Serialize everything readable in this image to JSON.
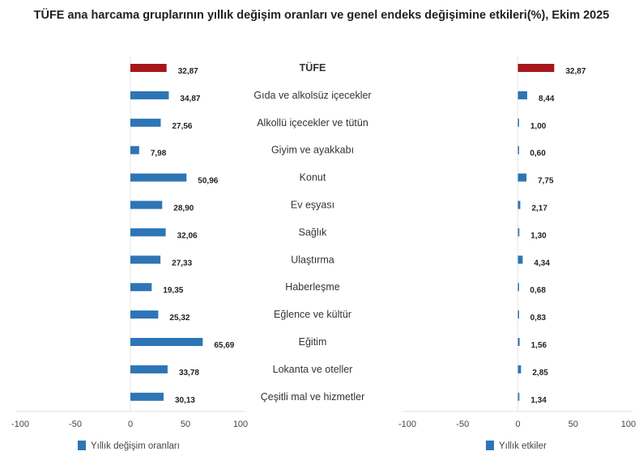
{
  "chart_data": [
    {
      "type": "bar",
      "orientation": "horizontal",
      "title": "TÜFE ana harcama gruplarının yıllık değişim oranları ve genel endeks değişimine etkileri(%), Ekim 2025",
      "categories": [
        "TÜFE",
        "Gıda ve alkolsüz içecekler",
        "Alkollü içecekler ve tütün",
        "Giyim ve ayakkabı",
        "Konut",
        "Ev eşyası",
        "Sağlık",
        "Ulaştırma",
        "Haberleşme",
        "Eğlence ve kültür",
        "Eğitim",
        "Lokanta ve oteller",
        "Çeşitli mal ve hizmetler"
      ],
      "series": [
        {
          "name": "Yıllık değişim oranları",
          "values": [
            32.87,
            34.87,
            27.56,
            7.98,
            50.96,
            28.9,
            32.06,
            27.33,
            19.35,
            25.32,
            65.69,
            33.78,
            30.13
          ],
          "labels": [
            "32,87",
            "34,87",
            "27,56",
            "7,98",
            "50,96",
            "28,90",
            "32,06",
            "27,33",
            "19,35",
            "25,32",
            "65,69",
            "33,78",
            "30,13"
          ]
        }
      ],
      "xlim": [
        -100,
        100
      ],
      "xticks": [
        "-100",
        "-50",
        "0",
        "50",
        "100"
      ],
      "legend": "bottom-left",
      "colors": {
        "highlight": "#a6161c",
        "bar": "#2e75b6"
      }
    },
    {
      "type": "bar",
      "orientation": "horizontal",
      "series": [
        {
          "name": "Yıllık etkiler",
          "values": [
            32.87,
            8.44,
            1.0,
            0.6,
            7.75,
            2.17,
            1.3,
            4.34,
            0.68,
            0.83,
            1.56,
            2.85,
            1.34
          ],
          "labels": [
            "32,87",
            "8,44",
            "1,00",
            "0,60",
            "7,75",
            "2,17",
            "1,30",
            "4,34",
            "0,68",
            "0,83",
            "1,56",
            "2,85",
            "1,34"
          ]
        }
      ],
      "xlim": [
        -100,
        100
      ],
      "xticks": [
        "-100",
        "-50",
        "0",
        "50",
        "100"
      ],
      "legend": "bottom-right",
      "colors": {
        "highlight": "#a6161c",
        "bar": "#2e75b6"
      }
    }
  ]
}
